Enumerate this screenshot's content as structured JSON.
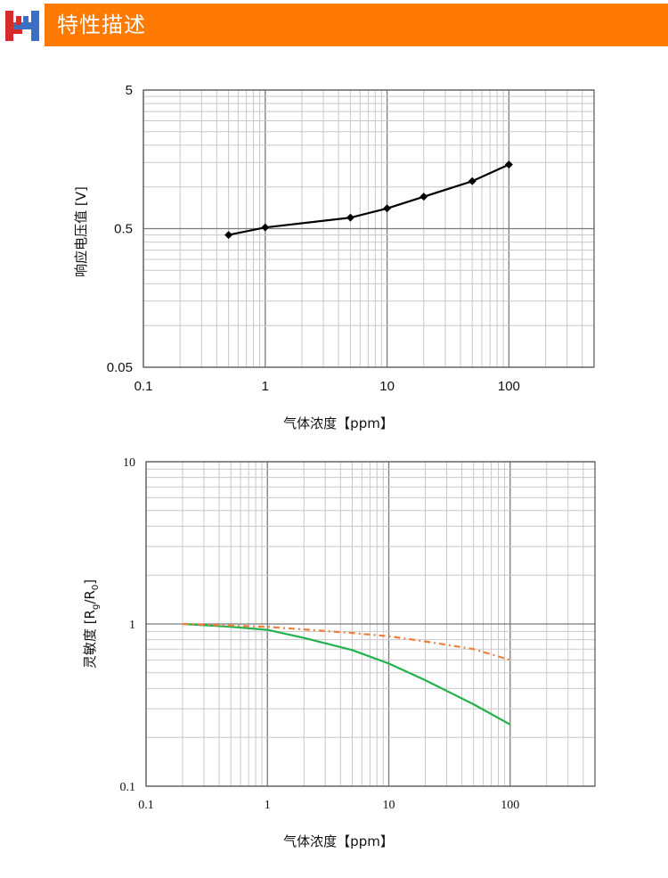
{
  "header": {
    "title": "特性描述",
    "brand_color": "#ff7a00",
    "logo_icon": "hm-logo-icon"
  },
  "chart_data": [
    {
      "type": "line",
      "title": "",
      "xlabel": "气体浓度【ppm】",
      "ylabel": "响应电压值 [V]",
      "x_scale": "log",
      "y_scale": "log",
      "xlim": [
        0.1,
        500
      ],
      "ylim": [
        0.05,
        5
      ],
      "x_ticks": [
        0.1,
        1,
        10,
        100
      ],
      "x_tick_labels": [
        "0.1",
        "1",
        "10",
        "100"
      ],
      "y_ticks": [
        0.05,
        0.5,
        5
      ],
      "y_tick_labels": [
        "0.05",
        "0.5",
        "5"
      ],
      "grid": true,
      "series": [
        {
          "color": "#000000",
          "marker": "diamond",
          "x": [
            0.5,
            1,
            5,
            10,
            20,
            50,
            100
          ],
          "y": [
            0.45,
            0.51,
            0.6,
            0.7,
            0.85,
            1.1,
            1.45
          ]
        }
      ]
    },
    {
      "type": "line",
      "title": "",
      "xlabel": "气体浓度【ppm】",
      "ylabel": "灵敏度 [Rg/R0]",
      "x_scale": "log",
      "y_scale": "log",
      "xlim": [
        0.1,
        500
      ],
      "ylim": [
        0.1,
        10
      ],
      "x_ticks": [
        0.1,
        1,
        10,
        100
      ],
      "x_tick_labels": [
        "0.1",
        "1",
        "10",
        "100"
      ],
      "y_ticks": [
        0.1,
        1,
        10
      ],
      "y_tick_labels": [
        "0.1",
        "1",
        "10"
      ],
      "grid": true,
      "series": [
        {
          "color": "#22b14c",
          "style": "solid",
          "x": [
            0.2,
            0.5,
            1,
            2,
            5,
            10,
            20,
            50,
            100
          ],
          "y": [
            1.0,
            0.96,
            0.92,
            0.82,
            0.69,
            0.57,
            0.45,
            0.32,
            0.24
          ]
        },
        {
          "color": "#f07f3c",
          "style": "dashdot",
          "x": [
            0.2,
            1,
            5,
            10,
            20,
            50,
            100
          ],
          "y": [
            1.0,
            0.96,
            0.88,
            0.84,
            0.78,
            0.7,
            0.6
          ]
        }
      ]
    }
  ]
}
